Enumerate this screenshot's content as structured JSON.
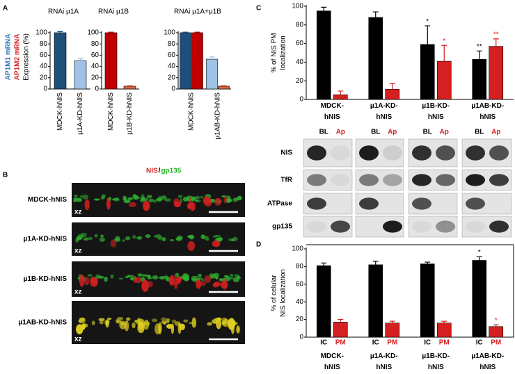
{
  "panel_labels": [
    "A",
    "B",
    "C",
    "D"
  ],
  "panel_a": {
    "ylabel": [
      {
        "text": "AP1M1 mRNA",
        "color": "#2e75b6"
      },
      {
        "text": "AP1M2 mRNA",
        "color": "#d42020"
      },
      {
        "text": "Expression (%)",
        "color": "#000000"
      }
    ]
  },
  "panel_b": {
    "title": [
      {
        "text": "NIS",
        "color": "#e02020"
      },
      {
        "text": "/",
        "color": "#000000"
      },
      {
        "text": "gp135",
        "color": "#22b022"
      }
    ],
    "rows": [
      "MDCK-hNIS",
      "µ1A-KD-hNIS",
      "µ1B-KD-hNIS",
      "µ1AB-KD-hNIS"
    ],
    "axis_label": "xz"
  },
  "blots": {
    "rows": [
      "NIS",
      "TfR",
      "ATPase",
      "gp135"
    ]
  },
  "chart_data": [
    {
      "type": "bar",
      "title": "RNAi µ1A",
      "categories": [
        "MDCK-hNIS",
        "µ1A-KD-hNIS"
      ],
      "series": [
        {
          "colors": [
            "#1f4e79",
            "#9dc3e6"
          ],
          "values": [
            100,
            50
          ],
          "errors": [
            2,
            4
          ]
        }
      ],
      "ylim": [
        0,
        100
      ],
      "yticks": [
        0,
        20,
        40,
        60,
        80,
        100
      ]
    },
    {
      "type": "bar",
      "title": "RNAi µ1B",
      "categories": [
        "MDCK-hNIS",
        "µ1B-KD-hNIS"
      ],
      "series": [
        {
          "colors": [
            "#c00000",
            "#d9603f"
          ],
          "values": [
            100,
            5
          ],
          "errors": [
            1,
            1
          ]
        }
      ],
      "ylim": [
        0,
        100
      ],
      "yticks": [
        0,
        20,
        40,
        60,
        80,
        100
      ]
    },
    {
      "type": "bar",
      "title": "RNAi µ1A+µ1B",
      "categories": [
        "MDCK-hNIS",
        "µ1AB-KD-hNIS"
      ],
      "series": [
        {
          "colors": [
            "#1f4e79",
            "#9dc3e6"
          ],
          "values": [
            100,
            53
          ],
          "errors": [
            1,
            4
          ]
        },
        {
          "colors": [
            "#c00000",
            "#d9603f"
          ],
          "values": [
            100,
            5
          ],
          "errors": [
            1,
            1
          ]
        }
      ],
      "ylim": [
        0,
        100
      ],
      "yticks": [
        0,
        20,
        40,
        60,
        80,
        100
      ]
    },
    {
      "type": "bar",
      "ylabel": [
        "% of NIS PM",
        "localization"
      ],
      "categories": [
        "MDCK-hNIS",
        "µ1A-KD-hNIS",
        "µ1B-KD-hNIS",
        "µ1AB-KD-hNIS"
      ],
      "series": [
        {
          "name": "BL",
          "color": "#000000",
          "values": [
            95,
            88,
            59,
            43
          ],
          "errors": [
            4,
            6,
            20,
            9
          ]
        },
        {
          "name": "Ap",
          "color": "#d42020",
          "values": [
            5,
            11,
            41,
            57
          ],
          "errors": [
            4,
            6,
            17,
            8
          ]
        }
      ],
      "ylim": [
        0,
        100
      ],
      "yticks": [
        0,
        20,
        40,
        60,
        80,
        100
      ],
      "annotations": [
        {
          "text": "*",
          "series": 0,
          "category": 2
        },
        {
          "text": "*",
          "series": 1,
          "category": 2
        },
        {
          "text": "**",
          "series": 0,
          "category": 3
        },
        {
          "text": "**",
          "series": 1,
          "category": 3
        }
      ]
    },
    {
      "type": "bar",
      "ylabel": [
        "% of celular",
        "NIS localization"
      ],
      "categories": [
        "MDCK-hNIS",
        "µ1A-KD-hNIS",
        "µ1B-KD-hNIS",
        "µ1AB-KD-hNIS"
      ],
      "series": [
        {
          "name": "IC",
          "color": "#000000",
          "values": [
            81,
            82,
            83,
            87
          ],
          "errors": [
            3,
            4,
            2,
            4
          ]
        },
        {
          "name": "PM",
          "color": "#d42020",
          "values": [
            17,
            16,
            16,
            12
          ],
          "errors": [
            3,
            2,
            2,
            2
          ]
        }
      ],
      "ylim": [
        0,
        100
      ],
      "yticks": [
        0,
        20,
        40,
        60,
        80,
        100
      ],
      "annotations": [
        {
          "text": "*",
          "series": 0,
          "category": 3
        },
        {
          "text": "*",
          "series": 1,
          "category": 3
        }
      ]
    }
  ]
}
